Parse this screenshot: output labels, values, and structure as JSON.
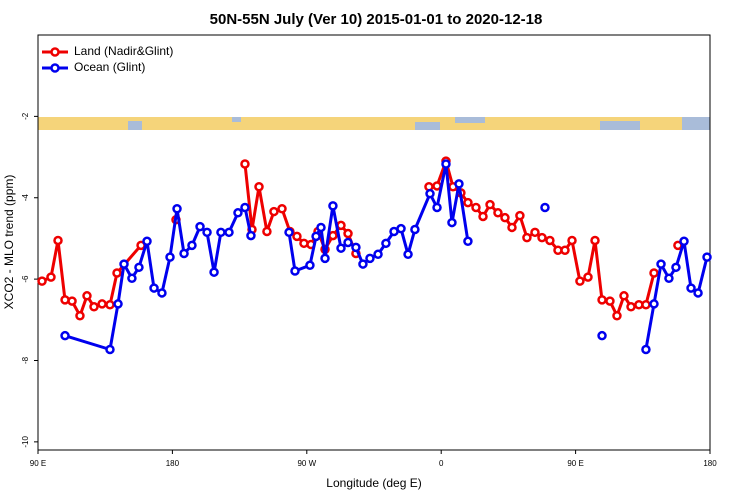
{
  "chart_data": {
    "type": "line",
    "title": "50N-55N July (Ver 10)   2015-01-01 to 2020-12-18",
    "x_label": "Longitude (deg E)",
    "y_label": "XCO2 - MLO trend (ppm)",
    "xlim": [
      90,
      540
    ],
    "xticks": [
      {
        "value": 90,
        "label": "90 E"
      },
      {
        "value": 180,
        "label": "180"
      },
      {
        "value": 270,
        "label": "90 W"
      },
      {
        "value": 360,
        "label": "0"
      },
      {
        "value": 450,
        "label": "90 E"
      },
      {
        "value": 540,
        "label": "180"
      }
    ],
    "ylim": [
      -10.2,
      0
    ],
    "yticks": [
      -10,
      -8,
      -6,
      -4,
      -2
    ],
    "legend": "top-left",
    "series": [
      {
        "name": "Land (Nadir&Glint)",
        "color": "#ee0000",
        "x": [
          92.7,
          98.7,
          103.4,
          108.1,
          112.8,
          118.1,
          122.8,
          127.5,
          132.9,
          138.2,
          142.9,
          159.0,
          null,
          182.4,
          null,
          228.6,
          233.3,
          238.0,
          243.3,
          248.0,
          253.4,
          258.7,
          263.4,
          268.1,
          272.8,
          277.5,
          282.2,
          287.5,
          292.9,
          297.6,
          302.9,
          null,
          351.8,
          357.2,
          363.2,
          367.9,
          373.2,
          377.9,
          383.3,
          388.0,
          392.7,
          398.0,
          402.7,
          407.4,
          412.7,
          417.4,
          422.8,
          427.5,
          432.8,
          438.2,
          442.9,
          447.6,
          452.9,
          458.3,
          463.0,
          467.7,
          473.0,
          477.7,
          482.4,
          487.1,
          492.4,
          497.1,
          502.5,
          null,
          518.5
        ],
        "values": [
          -6.05,
          -5.95,
          -5.05,
          -6.51,
          -6.54,
          -6.9,
          -6.41,
          -6.68,
          -6.61,
          -6.63,
          -5.85,
          -5.17,
          null,
          -4.54,
          null,
          -3.17,
          -4.78,
          -3.73,
          -4.83,
          -4.34,
          -4.27,
          -4.83,
          -4.95,
          -5.12,
          -5.15,
          -4.83,
          -5.27,
          -4.93,
          -4.68,
          -4.88,
          -5.37,
          null,
          -3.73,
          -3.71,
          -3.1,
          -3.73,
          -3.88,
          -4.12,
          -4.24,
          -4.46,
          -4.17,
          -4.37,
          -4.49,
          -4.73,
          -4.44,
          -4.98,
          -4.85,
          -4.98,
          -5.05,
          -5.29,
          -5.29,
          -5.05,
          -6.05,
          -5.95,
          -5.05,
          -6.51,
          -6.54,
          -6.9,
          -6.41,
          -6.68,
          -6.63,
          -6.63,
          -5.85,
          null,
          -5.17
        ]
      },
      {
        "name": "Ocean (Glint)",
        "color": "#0000ee",
        "x": [
          108.1,
          138.2,
          143.6,
          147.6,
          152.9,
          157.6,
          163.0,
          167.7,
          173.0,
          178.4,
          183.1,
          187.8,
          193.1,
          198.5,
          203.2,
          207.9,
          212.5,
          217.9,
          223.9,
          228.6,
          232.6,
          null,
          258.1,
          262.1,
          272.1,
          276.2,
          279.5,
          282.2,
          287.5,
          292.9,
          297.6,
          302.9,
          307.6,
          312.3,
          317.7,
          323.0,
          328.4,
          333.1,
          337.8,
          342.4,
          352.5,
          357.2,
          363.2,
          367.2,
          371.9,
          377.9,
          null,
          429.5,
          null,
          467.7,
          null,
          497.1,
          502.5,
          507.2,
          512.5,
          517.2,
          522.6,
          527.3,
          532.0,
          538.0
        ],
        "values": [
          -7.39,
          -7.73,
          -6.61,
          -5.63,
          -5.98,
          -5.71,
          -5.07,
          -6.22,
          -6.34,
          -5.46,
          -4.27,
          -5.37,
          -5.17,
          -4.71,
          -4.85,
          -5.83,
          -4.85,
          -4.85,
          -4.37,
          -4.24,
          -4.93,
          null,
          -4.85,
          -5.8,
          -5.66,
          -4.95,
          -4.73,
          -5.49,
          -4.2,
          -5.24,
          -5.1,
          -5.22,
          -5.63,
          -5.49,
          -5.39,
          -5.12,
          -4.83,
          -4.76,
          -5.39,
          -4.78,
          -3.9,
          -4.24,
          -3.17,
          -4.61,
          -3.66,
          -5.07,
          null,
          -4.24,
          null,
          -7.39,
          null,
          -7.73,
          -6.61,
          -5.63,
          -5.98,
          -5.71,
          -5.07,
          -6.22,
          -6.34,
          -5.46
        ]
      }
    ]
  }
}
